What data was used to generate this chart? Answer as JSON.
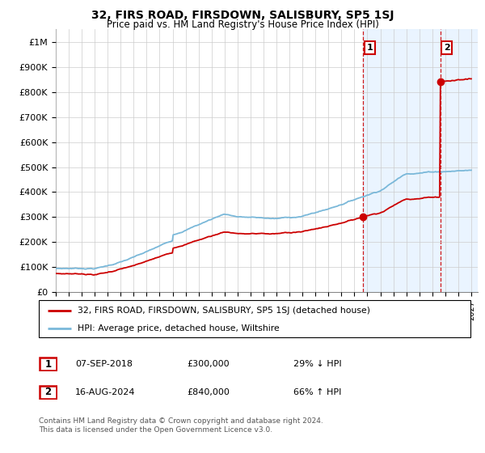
{
  "title": "32, FIRS ROAD, FIRSDOWN, SALISBURY, SP5 1SJ",
  "subtitle": "Price paid vs. HM Land Registry's House Price Index (HPI)",
  "ylabel_ticks": [
    "£0",
    "£100K",
    "£200K",
    "£300K",
    "£400K",
    "£500K",
    "£600K",
    "£700K",
    "£800K",
    "£900K",
    "£1M"
  ],
  "ytick_values": [
    0,
    100000,
    200000,
    300000,
    400000,
    500000,
    600000,
    700000,
    800000,
    900000,
    1000000
  ],
  "ylim": [
    0,
    1050000
  ],
  "xlim_start": 1995.0,
  "xlim_end": 2027.5,
  "hpi_color": "#7ab8d9",
  "sale_color": "#cc0000",
  "annotation_color": "#cc0000",
  "grid_color": "#cccccc",
  "sale1_x": 2018.69,
  "sale1_y": 300000,
  "sale1_label": "1",
  "sale2_x": 2024.62,
  "sale2_y": 840000,
  "sale2_label": "2",
  "legend_line1": "32, FIRS ROAD, FIRSDOWN, SALISBURY, SP5 1SJ (detached house)",
  "legend_line2": "HPI: Average price, detached house, Wiltshire",
  "table_row1_num": "1",
  "table_row1_date": "07-SEP-2018",
  "table_row1_price": "£300,000",
  "table_row1_hpi": "29% ↓ HPI",
  "table_row2_num": "2",
  "table_row2_date": "16-AUG-2024",
  "table_row2_price": "£840,000",
  "table_row2_hpi": "66% ↑ HPI",
  "footnote": "Contains HM Land Registry data © Crown copyright and database right 2024.\nThis data is licensed under the Open Government Licence v3.0.",
  "shade_color": "#ddeeff",
  "background_color": "#ffffff"
}
